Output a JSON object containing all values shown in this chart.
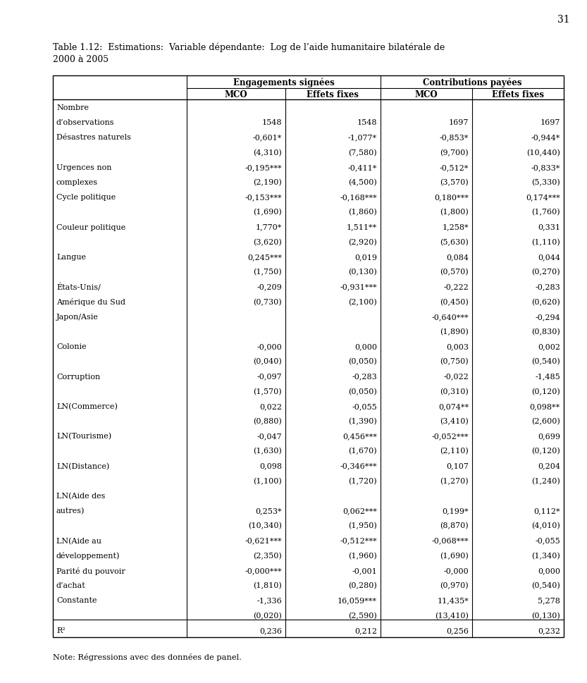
{
  "title_line1": "Table 1.12:  Estimations:  Variable dépendante:  Log de l’aide humanitaire bilatérale de",
  "title_line2": "2000 à 2005",
  "page_number": "31",
  "note": "Note: Régressions avec des données de panel.",
  "col_groups": [
    {
      "label": "Engagements signées"
    },
    {
      "label": "Contributions payées"
    }
  ],
  "col_headers": [
    "MCO",
    "Effets fixes",
    "MCO",
    "Effets fixes"
  ],
  "rows": [
    {
      "label": "Nombre",
      "values": [
        "",
        "",
        "",
        ""
      ],
      "is_r2": false
    },
    {
      "label": "d’observations",
      "values": [
        "1548",
        "1548",
        "1697",
        "1697"
      ],
      "is_r2": false
    },
    {
      "label": "Désastres naturels",
      "values": [
        "-0,601*",
        "-1,077*",
        "-0,853*",
        "-0,944*"
      ],
      "is_r2": false
    },
    {
      "label": "",
      "values": [
        "(4,310)",
        "(7,580)",
        "(9,700)",
        "(10,440)"
      ],
      "is_r2": false
    },
    {
      "label": "Urgences non",
      "values": [
        "-0,195***",
        "-0,411*",
        "-0,512*",
        "-0,833*"
      ],
      "is_r2": false
    },
    {
      "label": "complexes",
      "values": [
        "(2,190)",
        "(4,500)",
        "(3,570)",
        "(5,330)"
      ],
      "is_r2": false
    },
    {
      "label": "Cycle politique",
      "values": [
        "-0,153***",
        "-0,168***",
        "0,180***",
        "0,174***"
      ],
      "is_r2": false
    },
    {
      "label": "",
      "values": [
        "(1,690)",
        "(1,860)",
        "(1,800)",
        "(1,760)"
      ],
      "is_r2": false
    },
    {
      "label": "Couleur politique",
      "values": [
        "1,770*",
        "1,511**",
        "1,258*",
        "0,331"
      ],
      "is_r2": false
    },
    {
      "label": "",
      "values": [
        "(3,620)",
        "(2,920)",
        "(5,630)",
        "(1,110)"
      ],
      "is_r2": false
    },
    {
      "label": "Langue",
      "values": [
        "0,245***",
        "0,019",
        "0,084",
        "0,044"
      ],
      "is_r2": false
    },
    {
      "label": "",
      "values": [
        "(1,750)",
        "(0,130)",
        "(0,570)",
        "(0,270)"
      ],
      "is_r2": false
    },
    {
      "label": "États-Unis/",
      "values": [
        "-0,209",
        "-0,931***",
        "-0,222",
        "-0,283"
      ],
      "is_r2": false
    },
    {
      "label": "Amérique du Sud",
      "values": [
        "(0,730)",
        "(2,100)",
        "(0,450)",
        "(0,620)"
      ],
      "is_r2": false
    },
    {
      "label": "Japon/Asie",
      "values": [
        "",
        "",
        "-0,640***",
        "-0,294"
      ],
      "is_r2": false
    },
    {
      "label": "",
      "values": [
        "",
        "",
        "(1,890)",
        "(0,830)"
      ],
      "is_r2": false
    },
    {
      "label": "Colonie",
      "values": [
        "-0,000",
        "0,000",
        "0,003",
        "0,002"
      ],
      "is_r2": false
    },
    {
      "label": "",
      "values": [
        "(0,040)",
        "(0,050)",
        "(0,750)",
        "(0,540)"
      ],
      "is_r2": false
    },
    {
      "label": "Corruption",
      "values": [
        "-0,097",
        "-0,283",
        "-0,022",
        "-1,485"
      ],
      "is_r2": false
    },
    {
      "label": "",
      "values": [
        "(1,570)",
        "(0,050)",
        "(0,310)",
        "(0,120)"
      ],
      "is_r2": false
    },
    {
      "label": "LN(Commerce)",
      "values": [
        "0,022",
        "-0,055",
        "0,074**",
        "0,098**"
      ],
      "is_r2": false
    },
    {
      "label": "",
      "values": [
        "(0,880)",
        "(1,390)",
        "(3,410)",
        "(2,600)"
      ],
      "is_r2": false
    },
    {
      "label": "LN(Tourisme)",
      "values": [
        "-0,047",
        "0,456***",
        "-0,052***",
        "0,699"
      ],
      "is_r2": false
    },
    {
      "label": "",
      "values": [
        "(1,630)",
        "(1,670)",
        "(2,110)",
        "(0,120)"
      ],
      "is_r2": false
    },
    {
      "label": "LN(Distance)",
      "values": [
        "0,098",
        "-0,346***",
        "0,107",
        "0,204"
      ],
      "is_r2": false
    },
    {
      "label": "",
      "values": [
        "(1,100)",
        "(1,720)",
        "(1,270)",
        "(1,240)"
      ],
      "is_r2": false
    },
    {
      "label": "LN(Aide des",
      "values": [
        "",
        "",
        "",
        ""
      ],
      "is_r2": false
    },
    {
      "label": "autres)",
      "values": [
        "0,253*",
        "0,062***",
        "0,199*",
        "0,112*"
      ],
      "is_r2": false
    },
    {
      "label": "",
      "values": [
        "(10,340)",
        "(1,950)",
        "(8,870)",
        "(4,010)"
      ],
      "is_r2": false
    },
    {
      "label": "LN(Aide au",
      "values": [
        "-0,621***",
        "-0,512***",
        "-0,068***",
        "-0,055"
      ],
      "is_r2": false
    },
    {
      "label": "développement)",
      "values": [
        "(2,350)",
        "(1,960)",
        "(1,690)",
        "(1,340)"
      ],
      "is_r2": false
    },
    {
      "label": "Parité du pouvoir",
      "values": [
        "-0,000***",
        "-0,001",
        "-0,000",
        "0,000"
      ],
      "is_r2": false
    },
    {
      "label": "d’achat",
      "values": [
        "(1,810)",
        "(0,280)",
        "(0,970)",
        "(0,540)"
      ],
      "is_r2": false
    },
    {
      "label": "Constante",
      "values": [
        "-1,336",
        "16,059***",
        "11,435*",
        "5,278"
      ],
      "is_r2": false
    },
    {
      "label": "",
      "values": [
        "(0,020)",
        "(2,590)",
        "(13,410)",
        "(0,130)"
      ],
      "is_r2": false
    },
    {
      "label": "R²",
      "values": [
        "0,236",
        "0,212",
        "0,256",
        "0,232"
      ],
      "is_r2": true
    }
  ],
  "font_size": 8.0,
  "header_font_size": 8.5
}
